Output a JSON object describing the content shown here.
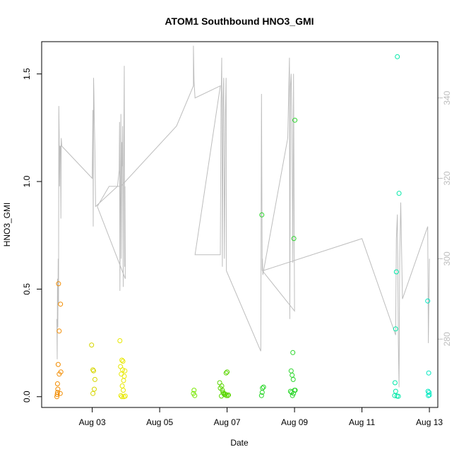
{
  "chart_data": {
    "type": "scatter",
    "title": "ATOM1 Southbound HNO3_GMI",
    "xlabel": "Date",
    "ylabel": "HNO3_GMI",
    "xlim": [
      1.5,
      13.25
    ],
    "ylim": [
      -0.05,
      1.65
    ],
    "x_ticks": [
      {
        "value": 3,
        "label": "Aug 03"
      },
      {
        "value": 5,
        "label": "Aug 05"
      },
      {
        "value": 7,
        "label": "Aug 07"
      },
      {
        "value": 9,
        "label": "Aug 09"
      },
      {
        "value": 11,
        "label": "Aug 11"
      },
      {
        "value": 13,
        "label": "Aug 13"
      }
    ],
    "y_ticks": [
      {
        "value": 0.0,
        "label": "0.0"
      },
      {
        "value": 0.5,
        "label": "0.5"
      },
      {
        "value": 1.0,
        "label": "1.0"
      },
      {
        "value": 1.5,
        "label": "1.5"
      }
    ],
    "y2lim": [
      263,
      354
    ],
    "y2_ticks": [
      {
        "value": 280,
        "label": "280"
      },
      {
        "value": 300,
        "label": "300"
      },
      {
        "value": 320,
        "label": "320"
      },
      {
        "value": 340,
        "label": "340"
      }
    ],
    "grid": false,
    "colors": {
      "line": "#bdbdbd",
      "axis": "#000000",
      "right_axis": "#bdbdbd"
    },
    "points": [
      {
        "x": 1.95,
        "y": 0.0,
        "color": "#f28c00"
      },
      {
        "x": 1.96,
        "y": 0.01,
        "color": "#f28c00"
      },
      {
        "x": 1.97,
        "y": 0.02,
        "color": "#f28c00"
      },
      {
        "x": 1.98,
        "y": 0.035,
        "color": "#f28c00"
      },
      {
        "x": 1.97,
        "y": 0.06,
        "color": "#f28c00"
      },
      {
        "x": 2.02,
        "y": 0.105,
        "color": "#f28c00"
      },
      {
        "x": 2.07,
        "y": 0.115,
        "color": "#f28c00"
      },
      {
        "x": 1.99,
        "y": 0.15,
        "color": "#f28c00"
      },
      {
        "x": 2.02,
        "y": 0.305,
        "color": "#f28c00"
      },
      {
        "x": 2.06,
        "y": 0.43,
        "color": "#f28c00"
      },
      {
        "x": 2.0,
        "y": 0.525,
        "color": "#f28c00"
      },
      {
        "x": 2.05,
        "y": 0.015,
        "color": "#f28c00"
      },
      {
        "x": 2.98,
        "y": 0.24,
        "color": "#d6d600"
      },
      {
        "x": 3.02,
        "y": 0.125,
        "color": "#d6d600"
      },
      {
        "x": 3.04,
        "y": 0.12,
        "color": "#d6d600"
      },
      {
        "x": 3.08,
        "y": 0.08,
        "color": "#d6d600"
      },
      {
        "x": 3.06,
        "y": 0.035,
        "color": "#d6d600"
      },
      {
        "x": 3.02,
        "y": 0.015,
        "color": "#d6d600"
      },
      {
        "x": 3.82,
        "y": 0.26,
        "color": "#e8e800"
      },
      {
        "x": 3.88,
        "y": 0.17,
        "color": "#e8e800"
      },
      {
        "x": 3.91,
        "y": 0.165,
        "color": "#e8e800"
      },
      {
        "x": 3.84,
        "y": 0.14,
        "color": "#e8e800"
      },
      {
        "x": 3.9,
        "y": 0.125,
        "color": "#e8e800"
      },
      {
        "x": 3.97,
        "y": 0.12,
        "color": "#e8e800"
      },
      {
        "x": 3.86,
        "y": 0.105,
        "color": "#e8e800"
      },
      {
        "x": 3.95,
        "y": 0.095,
        "color": "#e8e800"
      },
      {
        "x": 3.93,
        "y": 0.075,
        "color": "#e8e800"
      },
      {
        "x": 3.89,
        "y": 0.05,
        "color": "#e8e800"
      },
      {
        "x": 3.92,
        "y": 0.03,
        "color": "#e8e800"
      },
      {
        "x": 3.85,
        "y": 0.005,
        "color": "#e8e800"
      },
      {
        "x": 3.88,
        "y": 0.0,
        "color": "#e8e800"
      },
      {
        "x": 3.94,
        "y": 0.0,
        "color": "#e8e800"
      },
      {
        "x": 3.98,
        "y": 0.003,
        "color": "#e8e800"
      },
      {
        "x": 6.02,
        "y": 0.03,
        "color": "#78e800"
      },
      {
        "x": 6.0,
        "y": 0.015,
        "color": "#78e800"
      },
      {
        "x": 6.04,
        "y": 0.005,
        "color": "#78e800"
      },
      {
        "x": 6.78,
        "y": 0.065,
        "color": "#5ad600"
      },
      {
        "x": 6.84,
        "y": 0.05,
        "color": "#5ad600"
      },
      {
        "x": 6.8,
        "y": 0.04,
        "color": "#5ad600"
      },
      {
        "x": 6.86,
        "y": 0.03,
        "color": "#5ad600"
      },
      {
        "x": 6.88,
        "y": 0.02,
        "color": "#5ad600"
      },
      {
        "x": 6.9,
        "y": 0.015,
        "color": "#5ad600"
      },
      {
        "x": 6.92,
        "y": 0.01,
        "color": "#5ad600"
      },
      {
        "x": 6.95,
        "y": 0.012,
        "color": "#5ad600"
      },
      {
        "x": 6.98,
        "y": 0.005,
        "color": "#5ad600"
      },
      {
        "x": 6.83,
        "y": 0.003,
        "color": "#5ad600"
      },
      {
        "x": 6.97,
        "y": 0.11,
        "color": "#5ad600"
      },
      {
        "x": 7.0,
        "y": 0.115,
        "color": "#5ad600"
      },
      {
        "x": 7.02,
        "y": 0.005,
        "color": "#5ad600"
      },
      {
        "x": 7.04,
        "y": 0.008,
        "color": "#5ad600"
      },
      {
        "x": 8.03,
        "y": 0.845,
        "color": "#2ad62a"
      },
      {
        "x": 8.05,
        "y": 0.04,
        "color": "#2ad62a"
      },
      {
        "x": 8.08,
        "y": 0.045,
        "color": "#2ad62a"
      },
      {
        "x": 8.04,
        "y": 0.02,
        "color": "#2ad62a"
      },
      {
        "x": 8.02,
        "y": 0.005,
        "color": "#2ad62a"
      },
      {
        "x": 8.9,
        "y": 0.12,
        "color": "#2ad62a"
      },
      {
        "x": 8.95,
        "y": 0.205,
        "color": "#2ad62a"
      },
      {
        "x": 8.93,
        "y": 0.1,
        "color": "#2ad62a"
      },
      {
        "x": 8.96,
        "y": 0.08,
        "color": "#2ad62a"
      },
      {
        "x": 8.88,
        "y": 0.025,
        "color": "#2ad62a"
      },
      {
        "x": 8.91,
        "y": 0.02,
        "color": "#2ad62a"
      },
      {
        "x": 8.97,
        "y": 0.015,
        "color": "#2ad62a"
      },
      {
        "x": 9.0,
        "y": 0.03,
        "color": "#2ad62a"
      },
      {
        "x": 9.02,
        "y": 0.03,
        "color": "#2ad62a"
      },
      {
        "x": 8.94,
        "y": 0.005,
        "color": "#2ad62a"
      },
      {
        "x": 8.98,
        "y": 0.735,
        "color": "#2ad62a"
      },
      {
        "x": 9.01,
        "y": 1.285,
        "color": "#2ad62a"
      },
      {
        "x": 12.05,
        "y": 1.58,
        "color": "#00e8a8"
      },
      {
        "x": 12.1,
        "y": 0.945,
        "color": "#00e8a8"
      },
      {
        "x": 12.02,
        "y": 0.58,
        "color": "#00e8a8"
      },
      {
        "x": 12.0,
        "y": 0.315,
        "color": "#00e8a8"
      },
      {
        "x": 11.98,
        "y": 0.065,
        "color": "#00e8a8"
      },
      {
        "x": 12.0,
        "y": 0.025,
        "color": "#00e8a8"
      },
      {
        "x": 11.97,
        "y": 0.005,
        "color": "#00e8a8"
      },
      {
        "x": 12.04,
        "y": 0.003,
        "color": "#00e8a8"
      },
      {
        "x": 12.08,
        "y": 0.002,
        "color": "#00e8a8"
      },
      {
        "x": 12.95,
        "y": 0.445,
        "color": "#00e8c0"
      },
      {
        "x": 12.98,
        "y": 0.11,
        "color": "#00e8c0"
      },
      {
        "x": 12.96,
        "y": 0.025,
        "color": "#00e8c0"
      },
      {
        "x": 12.99,
        "y": 0.02,
        "color": "#00e8c0"
      },
      {
        "x": 12.97,
        "y": 0.005,
        "color": "#00e8c0"
      },
      {
        "x": 13.0,
        "y": 0.008,
        "color": "#00e8c0"
      }
    ],
    "line": [
      [
        1.95,
        285
      ],
      [
        1.96,
        275
      ],
      [
        1.97,
        295
      ],
      [
        1.98,
        283
      ],
      [
        1.99,
        300
      ],
      [
        2.0,
        289
      ],
      [
        2.01,
        338
      ],
      [
        2.02,
        331
      ],
      [
        2.03,
        318
      ],
      [
        2.04,
        328
      ],
      [
        2.06,
        328
      ],
      [
        2.07,
        310
      ],
      [
        2.08,
        330
      ],
      [
        2.1,
        328
      ],
      [
        3.0,
        320
      ],
      [
        3.02,
        337
      ],
      [
        3.03,
        308
      ],
      [
        3.04,
        345
      ],
      [
        3.05,
        341
      ],
      [
        3.06,
        335
      ],
      [
        3.08,
        327
      ],
      [
        3.1,
        313
      ],
      [
        3.75,
        318
      ],
      [
        3.8,
        322
      ],
      [
        3.81,
        334
      ],
      [
        3.82,
        292
      ],
      [
        3.85,
        336
      ],
      [
        3.86,
        300
      ],
      [
        3.88,
        329
      ],
      [
        3.89,
        323
      ],
      [
        3.9,
        333
      ],
      [
        3.92,
        293
      ],
      [
        3.93,
        320
      ],
      [
        3.95,
        348
      ],
      [
        3.96,
        298
      ],
      [
        3.97,
        318
      ],
      [
        3.98,
        295
      ],
      [
        3.15,
        313
      ],
      [
        3.5,
        318
      ],
      [
        3.85,
        318
      ],
      [
        5.5,
        333
      ],
      [
        6.0,
        343
      ],
      [
        6.0,
        353
      ],
      [
        6.02,
        344
      ],
      [
        6.05,
        340
      ],
      [
        6.8,
        343
      ],
      [
        6.05,
        301
      ],
      [
        6.8,
        301
      ],
      [
        6.82,
        338
      ],
      [
        6.84,
        350
      ],
      [
        6.86,
        298
      ],
      [
        6.88,
        340
      ],
      [
        6.9,
        345
      ],
      [
        6.92,
        300
      ],
      [
        6.95,
        336
      ],
      [
        6.97,
        345
      ],
      [
        6.98,
        297
      ],
      [
        8.0,
        277
      ],
      [
        8.02,
        341
      ],
      [
        8.04,
        297
      ],
      [
        8.05,
        300
      ],
      [
        8.06,
        296
      ],
      [
        8.8,
        330
      ],
      [
        8.85,
        350
      ],
      [
        8.86,
        285
      ],
      [
        8.88,
        343
      ],
      [
        8.9,
        346
      ],
      [
        8.92,
        336
      ],
      [
        8.95,
        299
      ],
      [
        8.97,
        346
      ],
      [
        9.0,
        287
      ],
      [
        8.05,
        297
      ],
      [
        11.0,
        305
      ],
      [
        12.0,
        281
      ],
      [
        12.02,
        305
      ],
      [
        12.05,
        311
      ],
      [
        12.08,
        279
      ],
      [
        12.1,
        268
      ],
      [
        12.12,
        300
      ],
      [
        12.15,
        314
      ],
      [
        12.2,
        290
      ],
      [
        12.95,
        308
      ],
      [
        12.97,
        279
      ],
      [
        13.0,
        300
      ]
    ]
  }
}
